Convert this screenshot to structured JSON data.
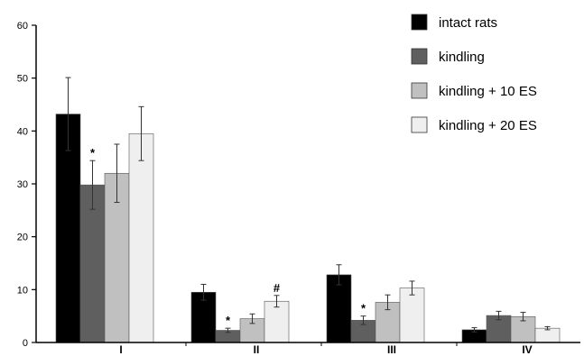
{
  "chart_data": {
    "type": "bar",
    "title": "",
    "xlabel": "",
    "ylabel": "",
    "ylim": [
      0,
      60
    ],
    "yticks": [
      0,
      10,
      20,
      30,
      40,
      50,
      60
    ],
    "grid": false,
    "legend_position": "top-right",
    "categories": [
      "I",
      "II",
      "III",
      "IV"
    ],
    "series": [
      {
        "name": "intact rats",
        "color": "#000000",
        "values": [
          43.2,
          9.5,
          12.8,
          2.4
        ],
        "errors": [
          6.9,
          1.5,
          1.9,
          0.4
        ]
      },
      {
        "name": "kindling",
        "color": "#5f5f5f",
        "values": [
          29.8,
          2.3,
          4.2,
          5.1
        ],
        "errors": [
          4.6,
          0.4,
          0.8,
          0.8
        ]
      },
      {
        "name": "kindling + 10 ES",
        "color": "#c0c0c0",
        "values": [
          32.0,
          4.5,
          7.6,
          4.9
        ],
        "errors": [
          5.5,
          0.9,
          1.4,
          0.8
        ]
      },
      {
        "name": "kindling + 20 ES",
        "color": "#efefef",
        "values": [
          39.5,
          7.8,
          10.3,
          2.7
        ],
        "errors": [
          5.1,
          1.1,
          1.3,
          0.3
        ]
      }
    ],
    "annotations": [
      {
        "text": "*",
        "category": "I",
        "series": "kindling"
      },
      {
        "text": "*",
        "category": "II",
        "series": "kindling"
      },
      {
        "text": "#",
        "category": "II",
        "series": "kindling + 20 ES"
      },
      {
        "text": "*",
        "category": "III",
        "series": "kindling"
      }
    ]
  }
}
